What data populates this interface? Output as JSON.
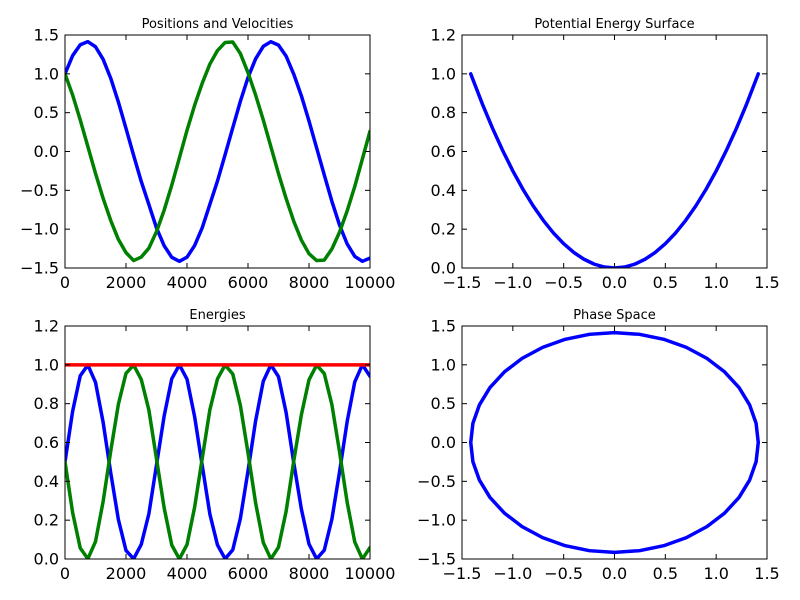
{
  "chart_data": [
    {
      "type": "line",
      "title": "Positions and Velocities",
      "xlim": [
        0,
        10000
      ],
      "ylim": [
        -1.5,
        1.5
      ],
      "xticks": [
        0,
        2000,
        4000,
        6000,
        8000,
        10000
      ],
      "yticks": [
        -1.5,
        -1.0,
        -0.5,
        0.0,
        0.5,
        1.0,
        1.5
      ],
      "xtick_labels": [
        "0",
        "2000",
        "4000",
        "6000",
        "8000",
        "10000"
      ],
      "ytick_labels": [
        "−1.5",
        "−1.0",
        "−0.5",
        "0.0",
        "0.5",
        "1.0",
        "1.5"
      ],
      "grid": false,
      "series": [
        {
          "color": "#0000ff",
          "x": [
            0,
            250,
            500,
            750,
            1000,
            1250,
            1500,
            1750,
            2000,
            2250,
            2500,
            2750,
            3000,
            3250,
            3500,
            3750,
            4000,
            4250,
            4500,
            4750,
            5000,
            5250,
            5500,
            5750,
            6000,
            6250,
            6500,
            6750,
            7000,
            7250,
            7500,
            7750,
            8000,
            8250,
            8500,
            8750,
            9000,
            9250,
            9500,
            9750,
            10000
          ],
          "y": [
            1.0,
            1.234,
            1.374,
            1.414,
            1.349,
            1.187,
            0.942,
            0.637,
            0.297,
            -0.05,
            -0.386,
            -0.683,
            -0.984,
            -1.213,
            -1.362,
            -1.414,
            -1.361,
            -1.211,
            -0.981,
            -0.68,
            -0.379,
            -0.04,
            0.305,
            0.647,
            0.952,
            1.193,
            1.353,
            1.414,
            1.37,
            1.228,
            0.996,
            0.717,
            0.392,
            0.046,
            -0.301,
            -0.641,
            -0.946,
            -1.189,
            -1.35,
            -1.414,
            -1.372
          ]
        },
        {
          "color": "#008000",
          "x": [
            0,
            250,
            500,
            750,
            1000,
            1250,
            1500,
            1750,
            2000,
            2250,
            2500,
            2750,
            3000,
            3250,
            3500,
            3750,
            4000,
            4250,
            4500,
            4750,
            5000,
            5250,
            5500,
            5750,
            6000,
            6250,
            6500,
            6750,
            7000,
            7250,
            7500,
            7750,
            8000,
            8250,
            8500,
            8750,
            9000,
            9250,
            9500,
            9750,
            10000
          ],
          "y": [
            1.0,
            0.727,
            0.406,
            0.063,
            -0.282,
            -0.603,
            -0.889,
            -1.132,
            -1.302,
            -1.404,
            -1.359,
            -1.245,
            -1.032,
            -0.757,
            -0.435,
            -0.083,
            0.272,
            0.596,
            0.88,
            1.126,
            1.3,
            1.404,
            1.41,
            1.261,
            1.015,
            0.726,
            0.407,
            0.062,
            -0.285,
            -0.606,
            -0.898,
            -1.14,
            -1.316,
            -1.404,
            -1.398,
            -1.255,
            -1.04,
            -0.766,
            -0.451,
            -0.097,
            0.261
          ]
        }
      ]
    },
    {
      "type": "line",
      "title": "Potential Energy Surface",
      "xlim": [
        -1.5,
        1.5
      ],
      "ylim": [
        0.0,
        1.2
      ],
      "xticks": [
        -1.5,
        -1.0,
        -0.5,
        0.0,
        0.5,
        1.0,
        1.5
      ],
      "yticks": [
        0.0,
        0.2,
        0.4,
        0.6,
        0.8,
        1.0,
        1.2
      ],
      "xtick_labels": [
        "−1.5",
        "−1.0",
        "−0.5",
        "0.0",
        "0.5",
        "1.0",
        "1.5"
      ],
      "ytick_labels": [
        "0.0",
        "0.2",
        "0.4",
        "0.6",
        "0.8",
        "1.0",
        "1.2"
      ],
      "grid": false,
      "series": [
        {
          "color": "#0000ff",
          "x": [
            -1.414,
            -1.3,
            -1.2,
            -1.1,
            -1.0,
            -0.9,
            -0.8,
            -0.7,
            -0.6,
            -0.5,
            -0.4,
            -0.3,
            -0.2,
            -0.1,
            0.0,
            0.1,
            0.2,
            0.3,
            0.4,
            0.5,
            0.6,
            0.7,
            0.8,
            0.9,
            1.0,
            1.1,
            1.2,
            1.3,
            1.414
          ],
          "y": [
            1.0,
            0.845,
            0.72,
            0.605,
            0.5,
            0.405,
            0.32,
            0.245,
            0.18,
            0.125,
            0.08,
            0.045,
            0.02,
            0.005,
            0.0,
            0.005,
            0.02,
            0.045,
            0.08,
            0.125,
            0.18,
            0.245,
            0.32,
            0.405,
            0.5,
            0.605,
            0.72,
            0.845,
            1.0
          ]
        }
      ]
    },
    {
      "type": "line",
      "title": "Energies",
      "xlim": [
        0,
        10000
      ],
      "ylim": [
        0.0,
        1.2
      ],
      "xticks": [
        0,
        2000,
        4000,
        6000,
        8000,
        10000
      ],
      "yticks": [
        0.0,
        0.2,
        0.4,
        0.6,
        0.8,
        1.0,
        1.2
      ],
      "xtick_labels": [
        "0",
        "2000",
        "4000",
        "6000",
        "8000",
        "10000"
      ],
      "ytick_labels": [
        "0.0",
        "0.2",
        "0.4",
        "0.6",
        "0.8",
        "1.0",
        "1.2"
      ],
      "grid": false,
      "series": [
        {
          "color": "#0000ff",
          "x": [
            0,
            250,
            500,
            750,
            1000,
            1250,
            1500,
            1750,
            2000,
            2250,
            2500,
            2750,
            3000,
            3250,
            3500,
            3750,
            4000,
            4250,
            4500,
            4750,
            5000,
            5250,
            5500,
            5750,
            6000,
            6250,
            6500,
            6750,
            7000,
            7250,
            7500,
            7750,
            8000,
            8250,
            8500,
            8750,
            9000,
            9250,
            9500,
            9750,
            10000
          ],
          "y": [
            0.5,
            0.761,
            0.944,
            0.999,
            0.91,
            0.704,
            0.443,
            0.203,
            0.044,
            0.001,
            0.075,
            0.233,
            0.484,
            0.736,
            0.928,
            1.0,
            0.926,
            0.733,
            0.481,
            0.231,
            0.072,
            0.001,
            0.047,
            0.209,
            0.453,
            0.712,
            0.915,
            1.0,
            0.939,
            0.754,
            0.496,
            0.257,
            0.077,
            0.001,
            0.045,
            0.205,
            0.447,
            0.707,
            0.912,
            1.0,
            0.941
          ]
        },
        {
          "color": "#008000",
          "x": [
            0,
            250,
            500,
            750,
            1000,
            1250,
            1500,
            1750,
            2000,
            2250,
            2500,
            2750,
            3000,
            3250,
            3500,
            3750,
            4000,
            4250,
            4500,
            4750,
            5000,
            5250,
            5500,
            5750,
            6000,
            6250,
            6500,
            6750,
            7000,
            7250,
            7500,
            7750,
            8000,
            8250,
            8500,
            8750,
            9000,
            9250,
            9500,
            9750,
            10000
          ],
          "y": [
            0.5,
            0.239,
            0.056,
            0.001,
            0.09,
            0.296,
            0.557,
            0.797,
            0.956,
            0.999,
            0.925,
            0.767,
            0.516,
            0.264,
            0.072,
            0.0,
            0.074,
            0.267,
            0.519,
            0.769,
            0.928,
            0.999,
            0.953,
            0.791,
            0.547,
            0.288,
            0.085,
            0.0,
            0.061,
            0.246,
            0.504,
            0.743,
            0.923,
            0.999,
            0.955,
            0.795,
            0.553,
            0.293,
            0.088,
            0.0,
            0.059
          ]
        },
        {
          "color": "#ff0000",
          "x": [
            0,
            10000
          ],
          "y": [
            1.0,
            1.0
          ]
        }
      ]
    },
    {
      "type": "line",
      "title": "Phase Space",
      "xlim": [
        -1.5,
        1.5
      ],
      "ylim": [
        -1.5,
        1.5
      ],
      "xticks": [
        -1.5,
        -1.0,
        -0.5,
        0.0,
        0.5,
        1.0,
        1.5
      ],
      "yticks": [
        -1.5,
        -1.0,
        -0.5,
        0.0,
        0.5,
        1.0,
        1.5
      ],
      "xtick_labels": [
        "−1.5",
        "−1.0",
        "−0.5",
        "0.0",
        "0.5",
        "1.0",
        "1.5"
      ],
      "ytick_labels": [
        "−1.5",
        "−1.0",
        "−0.5",
        "0.0",
        "0.5",
        "1.0",
        "1.5"
      ],
      "grid": false,
      "series": [
        {
          "color": "#0000ff",
          "x": [
            1.414,
            1.393,
            1.329,
            1.225,
            1.083,
            0.909,
            0.707,
            0.484,
            0.246,
            0.0,
            -0.246,
            -0.484,
            -0.707,
            -0.909,
            -1.083,
            -1.225,
            -1.329,
            -1.393,
            -1.414,
            -1.393,
            -1.329,
            -1.225,
            -1.083,
            -0.909,
            -0.707,
            -0.484,
            -0.246,
            0.0,
            0.246,
            0.484,
            0.707,
            0.909,
            1.083,
            1.225,
            1.329,
            1.393,
            1.414
          ],
          "y": [
            0.0,
            0.246,
            0.484,
            0.707,
            0.909,
            1.083,
            1.225,
            1.329,
            1.393,
            1.414,
            1.393,
            1.329,
            1.225,
            1.083,
            0.909,
            0.707,
            0.484,
            0.246,
            0.0,
            -0.246,
            -0.484,
            -0.707,
            -0.909,
            -1.083,
            -1.225,
            -1.329,
            -1.393,
            -1.414,
            -1.393,
            -1.329,
            -1.225,
            -1.083,
            -0.909,
            -0.707,
            -0.484,
            -0.246,
            0.0
          ]
        }
      ]
    }
  ]
}
